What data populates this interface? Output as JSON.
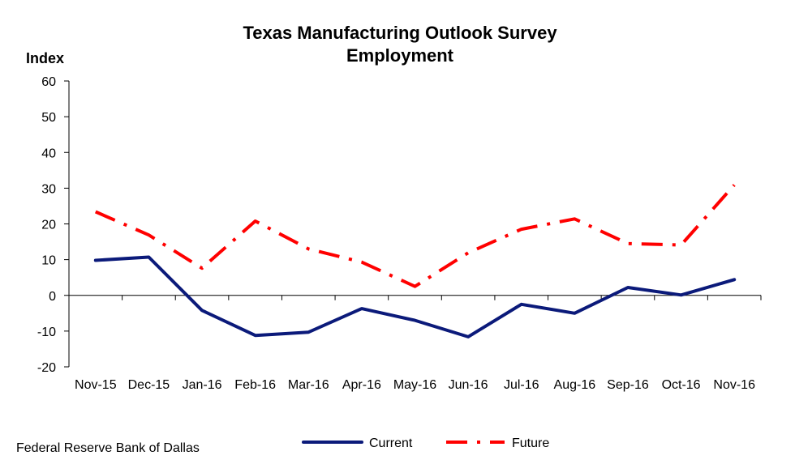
{
  "chart_data": {
    "type": "line",
    "title": "Texas Manufacturing Outlook Survey",
    "subtitle": "Employment",
    "ylabel": "Index",
    "xlabel": "",
    "ylim": [
      -20,
      60
    ],
    "yticks": [
      "-20",
      "-10",
      "0",
      "10",
      "20",
      "30",
      "40",
      "50",
      "60"
    ],
    "categories": [
      "Nov-15",
      "Dec-15",
      "Jan-16",
      "Feb-16",
      "Mar-16",
      "Apr-16",
      "May-16",
      "Jun-16",
      "Jul-16",
      "Aug-16",
      "Sep-16",
      "Oct-16",
      "Nov-16"
    ],
    "series": [
      {
        "name": "Current",
        "color": "#0b1a7a",
        "style": "solid",
        "values": [
          9.8,
          10.7,
          -4.2,
          -11.2,
          -10.3,
          -3.7,
          -7.0,
          -11.6,
          -2.5,
          -5.0,
          2.2,
          0.1,
          4.4
        ]
      },
      {
        "name": "Future",
        "color": "#ff0000",
        "style": "dash-dot",
        "values": [
          23.4,
          16.9,
          7.6,
          20.8,
          13.0,
          9.3,
          2.5,
          11.9,
          18.5,
          21.4,
          14.5,
          14.1,
          30.9
        ]
      }
    ],
    "legend_position": "bottom-center",
    "grid": false,
    "source": "Federal Reserve Bank of Dallas"
  }
}
